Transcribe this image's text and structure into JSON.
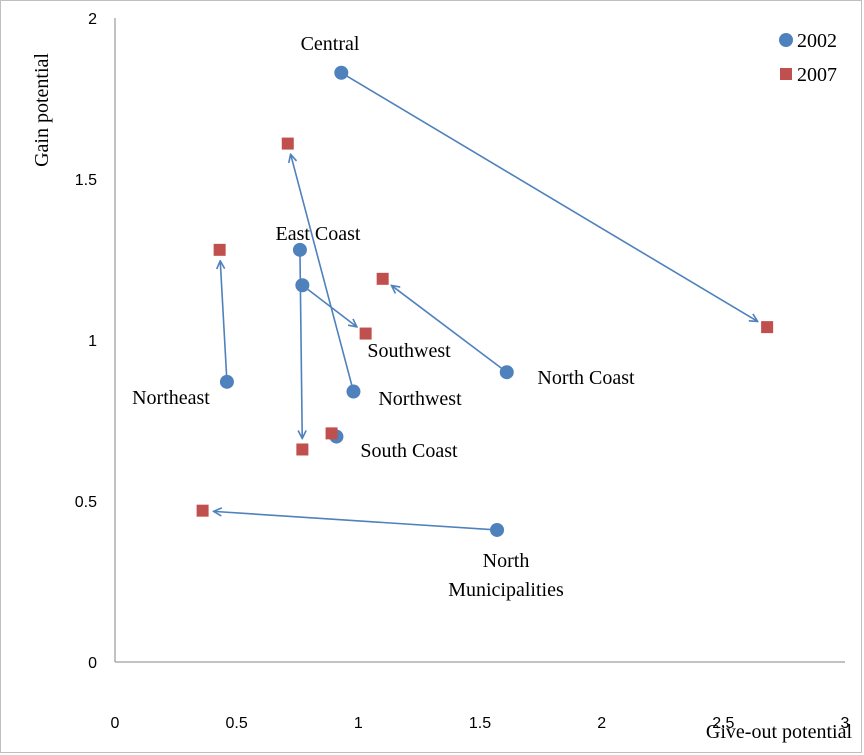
{
  "chart_data": {
    "type": "scatter",
    "xlabel": "Give-out potential",
    "ylabel": "Gain potential",
    "xlim": [
      0,
      3
    ],
    "ylim": [
      0,
      2
    ],
    "x_ticks": [
      "0",
      "0.5",
      "1",
      "1.5",
      "2",
      "2.5",
      "3"
    ],
    "y_ticks": [
      "0",
      "0.5",
      "1",
      "1.5",
      "2"
    ],
    "grid": false,
    "legend_position": "top-right",
    "series": [
      {
        "name": "2002",
        "color": "#4f81bd",
        "marker": "circle",
        "points": [
          {
            "region": "Central",
            "x": 0.93,
            "y": 1.83
          },
          {
            "region": "East Coast",
            "x": 0.76,
            "y": 1.28
          },
          {
            "region": "Southwest",
            "x": 0.77,
            "y": 1.17
          },
          {
            "region": "Northeast",
            "x": 0.46,
            "y": 0.87
          },
          {
            "region": "North Coast",
            "x": 1.61,
            "y": 0.9
          },
          {
            "region": "Northwest",
            "x": 0.98,
            "y": 0.84
          },
          {
            "region": "South Coast",
            "x": 0.91,
            "y": 0.7
          },
          {
            "region": "North Municipalities",
            "x": 1.57,
            "y": 0.41
          }
        ]
      },
      {
        "name": "2007",
        "color": "#c0504d",
        "marker": "square",
        "points": [
          {
            "region": "Central",
            "x": 2.68,
            "y": 1.04
          },
          {
            "region": "East Coast",
            "x": 0.77,
            "y": 0.66
          },
          {
            "region": "Southwest",
            "x": 1.03,
            "y": 1.02
          },
          {
            "region": "Northeast",
            "x": 0.43,
            "y": 1.28
          },
          {
            "region": "North Coast",
            "x": 1.1,
            "y": 1.19
          },
          {
            "region": "Northwest",
            "x": 0.71,
            "y": 1.61
          },
          {
            "region": "South Coast",
            "x": 0.89,
            "y": 0.71
          },
          {
            "region": "North Municipalities",
            "x": 0.36,
            "y": 0.47
          }
        ]
      }
    ],
    "arrows": [
      {
        "region": "Central",
        "from": [
          0.93,
          1.83
        ],
        "to": [
          2.68,
          1.04
        ]
      },
      {
        "region": "East Coast",
        "from": [
          0.76,
          1.28
        ],
        "to": [
          0.77,
          0.66
        ]
      },
      {
        "region": "Southwest",
        "from": [
          0.77,
          1.17
        ],
        "to": [
          1.03,
          1.02
        ]
      },
      {
        "region": "Northeast",
        "from": [
          0.46,
          0.87
        ],
        "to": [
          0.43,
          1.28
        ]
      },
      {
        "region": "North Coast",
        "from": [
          1.61,
          0.9
        ],
        "to": [
          1.1,
          1.19
        ]
      },
      {
        "region": "Northwest",
        "from": [
          0.98,
          0.84
        ],
        "to": [
          0.71,
          1.61
        ]
      },
      {
        "region": "North Municipalities",
        "from": [
          1.57,
          0.41
        ],
        "to": [
          0.36,
          0.47
        ]
      }
    ],
    "labels": [
      {
        "text": "Central"
      },
      {
        "text": "East Coast"
      },
      {
        "text": "Southwest"
      },
      {
        "text": "Northeast"
      },
      {
        "text": "North Coast"
      },
      {
        "text": "Northwest"
      },
      {
        "text": "South Coast"
      },
      {
        "text": "North"
      },
      {
        "text": "Municipalities"
      }
    ]
  }
}
